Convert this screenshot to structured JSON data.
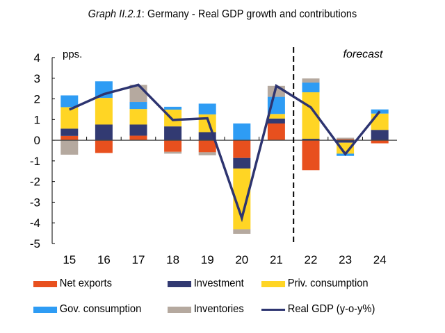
{
  "title": {
    "prefix": "Graph II.2.1",
    "text": ": Germany - Real GDP growth and contributions"
  },
  "chart_data": {
    "type": "bar",
    "stacked": true,
    "title": "Graph II.2.1: Germany - Real GDP growth and contributions",
    "ylabel": "pps.",
    "xlabel": "",
    "ylim": [
      -5,
      4
    ],
    "yticks": [
      4,
      3,
      2,
      1,
      0,
      -1,
      -2,
      -3,
      -4,
      -5
    ],
    "categories": [
      "15",
      "16",
      "17",
      "18",
      "19",
      "20",
      "21",
      "22",
      "23",
      "24"
    ],
    "annotation": "forecast",
    "forecast_from": "22",
    "series": [
      {
        "name": "Net exports",
        "color": "#E8501E",
        "values": [
          0.21,
          -0.62,
          0.22,
          -0.56,
          -0.58,
          -0.86,
          0.81,
          -1.45,
          0.05,
          -0.15
        ]
      },
      {
        "name": "Investment",
        "color": "#323A72",
        "values": [
          0.35,
          0.76,
          0.54,
          0.67,
          0.39,
          -0.51,
          0.24,
          0.07,
          -0.12,
          0.5
        ]
      },
      {
        "name": "Priv. consumption",
        "color": "#FFD524",
        "values": [
          1.04,
          1.29,
          0.75,
          0.81,
          0.86,
          -2.94,
          0.22,
          2.25,
          -0.53,
          0.79
        ]
      },
      {
        "name": "Gov. consumption",
        "color": "#2E9CF4",
        "values": [
          0.57,
          0.8,
          0.34,
          0.14,
          0.52,
          0.81,
          0.83,
          0.47,
          -0.11,
          0.2
        ]
      },
      {
        "name": "Inventories",
        "color": "#B5A99F",
        "values": [
          -0.7,
          0.0,
          0.83,
          -0.09,
          -0.15,
          -0.22,
          0.53,
          0.2,
          0.07,
          0.0
        ]
      }
    ],
    "line": {
      "name": "Real GDP (y-o-y%)",
      "color": "#2D3470",
      "values": [
        1.48,
        2.23,
        2.68,
        0.98,
        1.06,
        -3.77,
        2.63,
        1.59,
        -0.67,
        1.4
      ]
    },
    "legend": {
      "placement": "bottom",
      "items": [
        "Net exports",
        "Investment",
        "Priv. consumption",
        "Gov. consumption",
        "Inventories",
        "Real GDP (y-o-y%)"
      ]
    }
  }
}
